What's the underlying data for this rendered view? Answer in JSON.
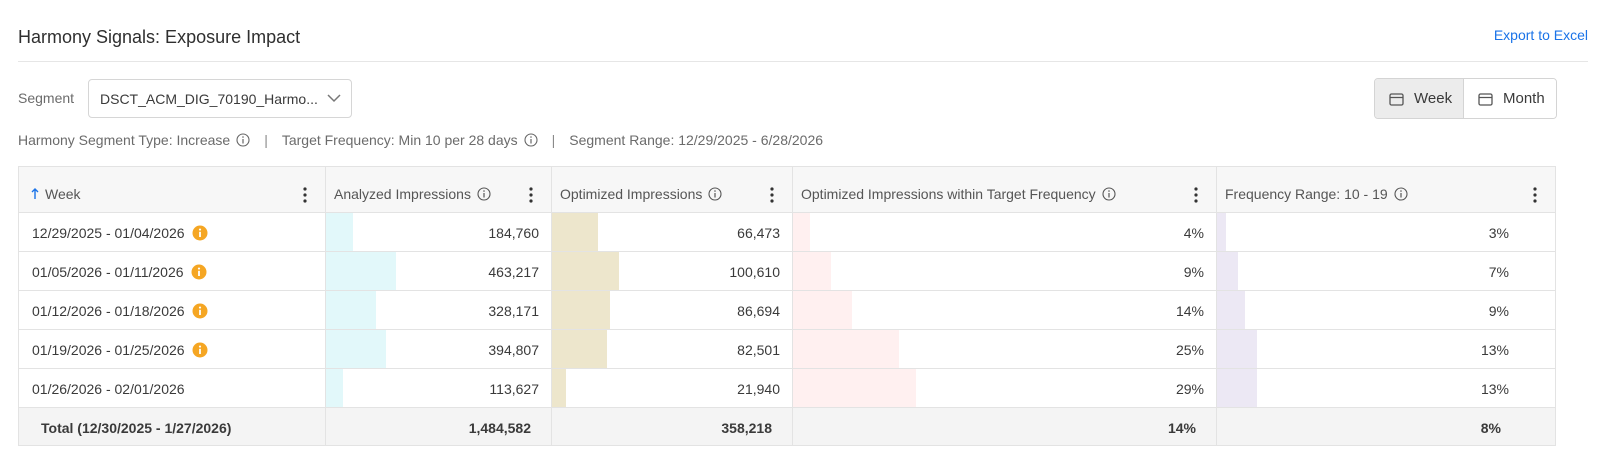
{
  "header": {
    "title": "Harmony Signals: Exposure Impact",
    "export_label": "Export to Excel"
  },
  "segment": {
    "label": "Segment",
    "value": "DSCT_ACM_DIG_70190_Harmo..."
  },
  "period_toggle": {
    "week_label": "Week",
    "month_label": "Month",
    "selected": "Week"
  },
  "meta": {
    "segment_type": "Harmony Segment Type: Increase",
    "target_frequency": "Target Frequency: Min 10 per 28 days",
    "segment_range": "Segment Range: 12/29/2025 - 6/28/2026",
    "separator": "|"
  },
  "table": {
    "columns": [
      "Week",
      "Analyzed Impressions",
      "Optimized Impressions",
      "Optimized Impressions within Target Frequency",
      "Frequency Range: 10 - 19"
    ],
    "bar_colors": [
      "#e2f8fa",
      "#ede6cc",
      "#fff0f0",
      "#ece8f4"
    ],
    "rows": [
      {
        "week": "12/29/2025 - 01/04/2026",
        "warn": true,
        "analyzed": "184,760",
        "optimized": "66,473",
        "within_target": "4%",
        "freq_range": "3%",
        "bar_fractions": [
          0.12,
          0.19,
          0.04,
          0.03
        ]
      },
      {
        "week": "01/05/2026 - 01/11/2026",
        "warn": true,
        "analyzed": "463,217",
        "optimized": "100,610",
        "within_target": "9%",
        "freq_range": "7%",
        "bar_fractions": [
          0.31,
          0.28,
          0.09,
          0.07
        ]
      },
      {
        "week": "01/12/2026 - 01/18/2026",
        "warn": true,
        "analyzed": "328,171",
        "optimized": "86,694",
        "within_target": "14%",
        "freq_range": "9%",
        "bar_fractions": [
          0.22,
          0.24,
          0.14,
          0.09
        ]
      },
      {
        "week": "01/19/2026 - 01/25/2026",
        "warn": true,
        "analyzed": "394,807",
        "optimized": "82,501",
        "within_target": "25%",
        "freq_range": "13%",
        "bar_fractions": [
          0.265,
          0.23,
          0.25,
          0.13
        ]
      },
      {
        "week": "01/26/2026 - 02/01/2026",
        "warn": false,
        "analyzed": "113,627",
        "optimized": "21,940",
        "within_target": "29%",
        "freq_range": "13%",
        "bar_fractions": [
          0.075,
          0.06,
          0.29,
          0.13
        ]
      }
    ],
    "total": {
      "label": "Total (12/30/2025 - 1/27/2026)",
      "analyzed": "1,484,582",
      "optimized": "358,218",
      "within_target": "14%",
      "freq_range": "8%"
    }
  }
}
